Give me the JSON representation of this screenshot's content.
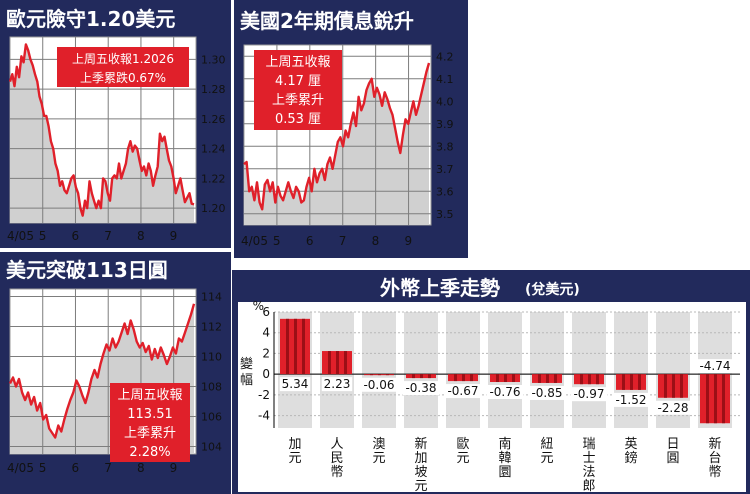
{
  "colors": {
    "red": "#e0202a",
    "dark_red": "#9b0f16",
    "panel_blue": "#222a5c",
    "area_gray": "#d0d0d0",
    "frame_gray": "#9a9a9a"
  },
  "chart_data": [
    {
      "type": "area",
      "title": "歐元險守1.20美元",
      "annotation": [
        "上周五收報1.2026",
        "上季累跌0.67%"
      ],
      "x_ticks": [
        "4/05",
        "5",
        "6",
        "7",
        "8",
        "9"
      ],
      "y_ticks": [
        "1.30",
        "1.28",
        "1.26",
        "1.24",
        "1.22",
        "1.20"
      ],
      "ylim": [
        1.19,
        1.315
      ],
      "y_tick_values": [
        1.3,
        1.28,
        1.26,
        1.24,
        1.22,
        1.2
      ],
      "xlim": [
        0,
        125
      ],
      "x_tick_positions": [
        0,
        22,
        44,
        66,
        88,
        110
      ],
      "values": [
        1.285,
        1.29,
        1.282,
        1.295,
        1.288,
        1.302,
        1.298,
        1.31,
        1.306,
        1.3,
        1.296,
        1.29,
        1.285,
        1.275,
        1.27,
        1.262,
        1.262,
        1.255,
        1.245,
        1.24,
        1.23,
        1.225,
        1.215,
        1.218,
        1.212,
        1.21,
        1.215,
        1.22,
        1.222,
        1.214,
        1.21,
        1.2,
        1.195,
        1.205,
        1.2,
        1.218,
        1.21,
        1.205,
        1.2,
        1.205,
        1.2,
        1.22,
        1.218,
        1.21,
        1.205,
        1.22,
        1.222,
        1.22,
        1.23,
        1.22,
        1.225,
        1.23,
        1.24,
        1.245,
        1.238,
        1.242,
        1.24,
        1.232,
        1.225,
        1.228,
        1.222,
        1.23,
        1.225,
        1.215,
        1.222,
        1.228,
        1.25,
        1.245,
        1.248,
        1.24,
        1.232,
        1.228,
        1.22,
        1.21,
        1.215,
        1.22,
        1.212,
        1.204,
        1.207,
        1.21,
        1.203,
        1.2026
      ]
    },
    {
      "type": "area",
      "title": "美國2年期債息銳升",
      "annotation": [
        "上周五收報",
        "4.17 厘",
        "上季累升",
        "0.53 厘"
      ],
      "x_ticks": [
        "4/05",
        "5",
        "6",
        "7",
        "8",
        "9"
      ],
      "y_ticks": [
        "4.2",
        "4.1",
        "4.0",
        "3.9",
        "3.8",
        "3.7",
        "3.6",
        "3.5"
      ],
      "ylim": [
        3.45,
        4.25
      ],
      "y_tick_values": [
        4.2,
        4.1,
        4.0,
        3.9,
        3.8,
        3.7,
        3.6,
        3.5
      ],
      "xlim": [
        0,
        125
      ],
      "x_tick_positions": [
        0,
        22,
        44,
        66,
        88,
        110
      ],
      "values": [
        3.72,
        3.73,
        3.6,
        3.62,
        3.56,
        3.64,
        3.55,
        3.52,
        3.63,
        3.65,
        3.6,
        3.64,
        3.55,
        3.62,
        3.58,
        3.56,
        3.6,
        3.64,
        3.6,
        3.57,
        3.62,
        3.6,
        3.55,
        3.56,
        3.62,
        3.66,
        3.6,
        3.7,
        3.64,
        3.68,
        3.7,
        3.65,
        3.72,
        3.75,
        3.7,
        3.76,
        3.82,
        3.84,
        3.8,
        3.87,
        3.84,
        3.9,
        3.95,
        3.89,
        4.02,
        3.96,
        3.99,
        4.05,
        4.08,
        4.1,
        4.02,
        4.06,
        4.03,
        3.98,
        4.04,
        4.01,
        3.97,
        3.94,
        3.88,
        3.82,
        3.77,
        3.85,
        3.92,
        3.9,
        3.95,
        4.0,
        3.94,
        3.98,
        4.03,
        4.08,
        4.13,
        4.17
      ]
    },
    {
      "type": "area",
      "title": "美元突破113日圓",
      "annotation": [
        "上周五收報",
        "113.51",
        "上季累升",
        "2.28%"
      ],
      "x_ticks": [
        "4/05",
        "5",
        "6",
        "7",
        "8",
        "9"
      ],
      "y_ticks": [
        "114",
        "112",
        "110",
        "108",
        "106",
        "104"
      ],
      "ylim": [
        103.5,
        114.5
      ],
      "y_tick_values": [
        114,
        112,
        110,
        108,
        106,
        104
      ],
      "xlim": [
        0,
        125
      ],
      "x_tick_positions": [
        0,
        22,
        44,
        66,
        88,
        110
      ],
      "values": [
        108.2,
        108.6,
        108.0,
        108.5,
        107.6,
        107.1,
        107.6,
        106.8,
        107.3,
        106.4,
        106.9,
        105.8,
        106.1,
        105.2,
        104.9,
        104.6,
        105.4,
        105.0,
        105.8,
        106.5,
        107.1,
        107.6,
        108.4,
        108.0,
        107.4,
        106.9,
        107.6,
        108.5,
        109.1,
        108.6,
        109.5,
        110.2,
        110.8,
        110.4,
        111.2,
        110.6,
        111.0,
        111.6,
        112.2,
        111.5,
        112.4,
        111.8,
        111.0,
        110.6,
        110.9,
        110.3,
        110.7,
        109.8,
        110.5,
        109.9,
        110.6,
        110.1,
        109.5,
        110.0,
        110.6,
        110.2,
        111.2,
        111.0,
        111.6,
        112.2,
        112.8,
        113.51
      ]
    },
    {
      "type": "bar",
      "title": "外幣上季走勢",
      "title_note": "(兌美元)",
      "ylabel": "變幅",
      "unit": "%",
      "ylim": [
        -5.2,
        6
      ],
      "y_ticks": [
        6,
        4,
        2,
        0,
        -2,
        -4
      ],
      "categories": [
        "加元",
        "人民幣",
        "澳元",
        "新加坡元",
        "歐元",
        "南韓圜",
        "紐元",
        "瑞士法郎",
        "英鎊",
        "日圓",
        "新台幣"
      ],
      "values": [
        5.34,
        2.23,
        -0.06,
        -0.38,
        -0.67,
        -0.76,
        -0.85,
        -0.97,
        -1.52,
        -2.28,
        -4.74
      ],
      "data_labels": [
        "5.34",
        "2.23",
        "-0.06",
        "-0.38",
        "-0.67",
        "-0.76",
        "-0.85",
        "-0.97",
        "-1.52",
        "-2.28",
        "-4.74"
      ]
    }
  ]
}
